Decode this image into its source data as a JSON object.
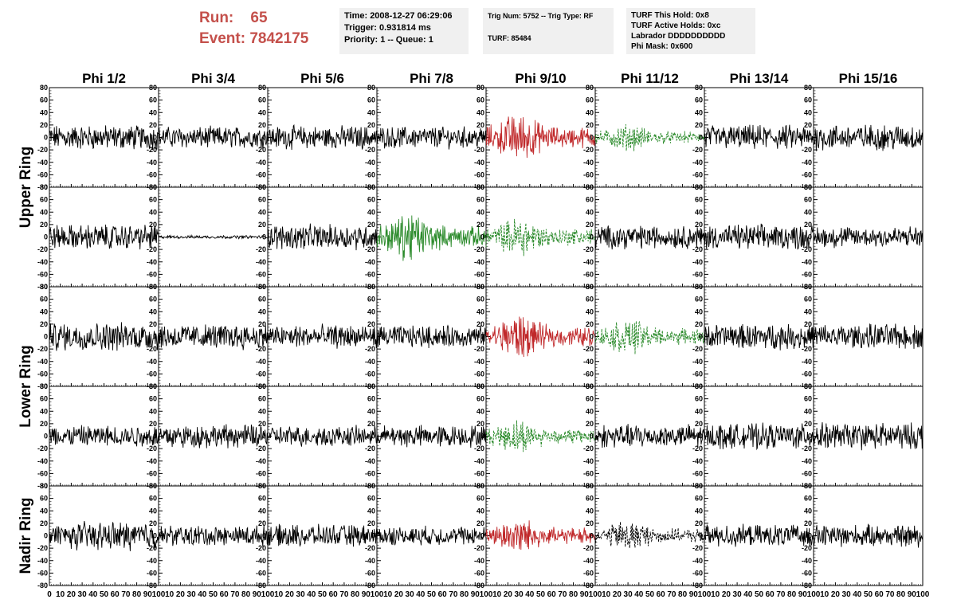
{
  "header": {
    "run_label": "Run:",
    "run_value": "65",
    "event_label": "Event:",
    "event_value": "7842175"
  },
  "info_boxes": [
    {
      "lines": [
        "Time: 2008-12-27 06:29:06",
        "Trigger: 0.931814 ms",
        "Priority: 1 -- Queue: 1"
      ]
    },
    {
      "lines": [
        "Trig Num: 5752 -- Trig Type: RF",
        "",
        "TURF: 85484"
      ]
    },
    {
      "lines": [
        "TURF This Hold: 0x8",
        "TURF Active Holds: 0xc",
        "Labrador DDDDDDDDDD",
        "Phi Mask: 0x600"
      ]
    }
  ],
  "chart_data": {
    "type": "line",
    "columns": [
      "Phi 1/2",
      "Phi 3/4",
      "Phi 5/6",
      "Phi 7/8",
      "Phi 9/10",
      "Phi 11/12",
      "Phi 13/14",
      "Phi 15/16"
    ],
    "ring_labels": [
      {
        "label": "Upper Ring",
        "rows": [
          0,
          1
        ]
      },
      {
        "label": "Lower Ring",
        "rows": [
          2,
          3
        ]
      },
      {
        "label": "Nadir Ring",
        "rows": [
          4
        ]
      }
    ],
    "xlim": [
      0,
      100
    ],
    "ylim": [
      -80,
      80
    ],
    "y_ticks": [
      -80,
      -60,
      -40,
      -20,
      0,
      20,
      40,
      60,
      80
    ],
    "x_ticks": [
      0,
      10,
      20,
      30,
      40,
      50,
      60,
      70,
      80,
      90,
      100
    ],
    "colors": {
      "default": "#000000",
      "triggered": "#c0282a",
      "coincident": "#2a8a2a",
      "dashed_black": "#000000"
    },
    "panels": [
      [
        {
          "color": "default",
          "dashed": false,
          "amp": 16
        },
        {
          "color": "default",
          "dashed": false,
          "amp": 14
        },
        {
          "color": "default",
          "dashed": false,
          "amp": 15
        },
        {
          "color": "default",
          "dashed": false,
          "amp": 14
        },
        {
          "color": "triggered",
          "dashed": false,
          "amp": 22
        },
        {
          "color": "coincident",
          "dashed": true,
          "amp": 12
        },
        {
          "color": "default",
          "dashed": false,
          "amp": 16
        },
        {
          "color": "default",
          "dashed": false,
          "amp": 17
        }
      ],
      [
        {
          "color": "default",
          "dashed": false,
          "amp": 16
        },
        {
          "color": "default",
          "dashed": false,
          "amp": 2
        },
        {
          "color": "default",
          "dashed": false,
          "amp": 16
        },
        {
          "color": "coincident",
          "dashed": false,
          "amp": 22
        },
        {
          "color": "coincident",
          "dashed": true,
          "amp": 18
        },
        {
          "color": "default",
          "dashed": false,
          "amp": 15
        },
        {
          "color": "default",
          "dashed": false,
          "amp": 16
        },
        {
          "color": "default",
          "dashed": false,
          "amp": 14
        }
      ],
      [
        {
          "color": "default",
          "dashed": false,
          "amp": 18
        },
        {
          "color": "default",
          "dashed": false,
          "amp": 16
        },
        {
          "color": "default",
          "dashed": false,
          "amp": 15
        },
        {
          "color": "default",
          "dashed": false,
          "amp": 14
        },
        {
          "color": "triggered",
          "dashed": false,
          "amp": 20
        },
        {
          "color": "coincident",
          "dashed": true,
          "amp": 16
        },
        {
          "color": "default",
          "dashed": false,
          "amp": 16
        },
        {
          "color": "default",
          "dashed": false,
          "amp": 16
        }
      ],
      [
        {
          "color": "default",
          "dashed": false,
          "amp": 14
        },
        {
          "color": "default",
          "dashed": false,
          "amp": 15
        },
        {
          "color": "default",
          "dashed": false,
          "amp": 13
        },
        {
          "color": "default",
          "dashed": false,
          "amp": 14
        },
        {
          "color": "coincident",
          "dashed": true,
          "amp": 15
        },
        {
          "color": "default",
          "dashed": false,
          "amp": 15
        },
        {
          "color": "default",
          "dashed": false,
          "amp": 16
        },
        {
          "color": "default",
          "dashed": false,
          "amp": 17
        }
      ],
      [
        {
          "color": "default",
          "dashed": false,
          "amp": 18
        },
        {
          "color": "default",
          "dashed": false,
          "amp": 13
        },
        {
          "color": "default",
          "dashed": false,
          "amp": 14
        },
        {
          "color": "default",
          "dashed": false,
          "amp": 12
        },
        {
          "color": "triggered",
          "dashed": false,
          "amp": 16
        },
        {
          "color": "dashed_black",
          "dashed": true,
          "amp": 14
        },
        {
          "color": "default",
          "dashed": false,
          "amp": 14
        },
        {
          "color": "default",
          "dashed": false,
          "amp": 14
        }
      ]
    ]
  }
}
